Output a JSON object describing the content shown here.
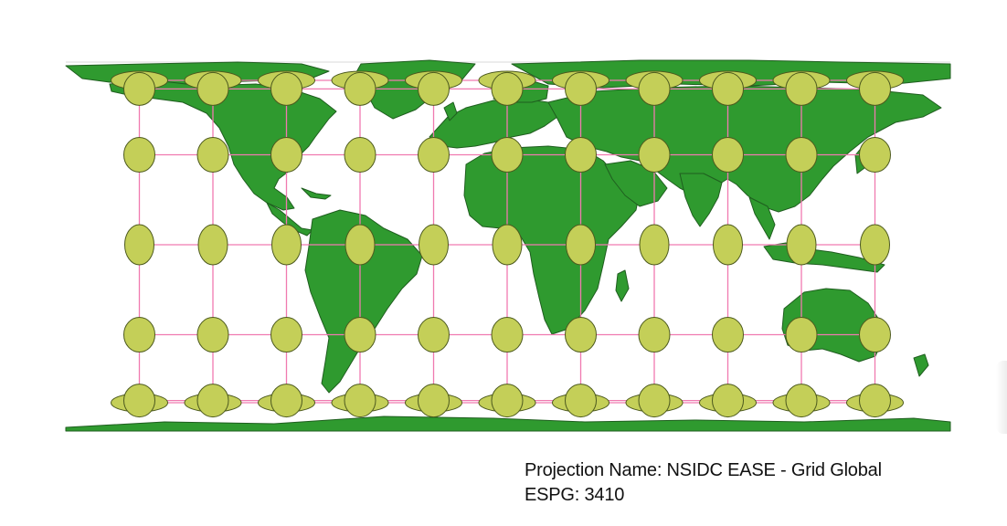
{
  "projection": {
    "name_line": "Projection Name: NSIDC EASE - Grid Global",
    "code_line": "ESPG: 3410"
  },
  "colors": {
    "land": "#2f9a2f",
    "land_border": "#1f5e1f",
    "ellipse_fill": "#c4cf58",
    "ellipse_stroke": "#4d5a1e",
    "graticule": "#f07ab0",
    "background": "#ffffff"
  },
  "tissot_indicatrix": {
    "longitudes": [
      -150,
      -120,
      -90,
      -60,
      -30,
      0,
      30,
      60,
      90,
      120,
      150
    ],
    "latitudes": [
      60,
      30,
      0,
      -30,
      -60
    ],
    "rows_shown": [
      "polar-north",
      "60N",
      "30N",
      "0",
      "30S",
      "60S",
      "polar-south"
    ]
  }
}
